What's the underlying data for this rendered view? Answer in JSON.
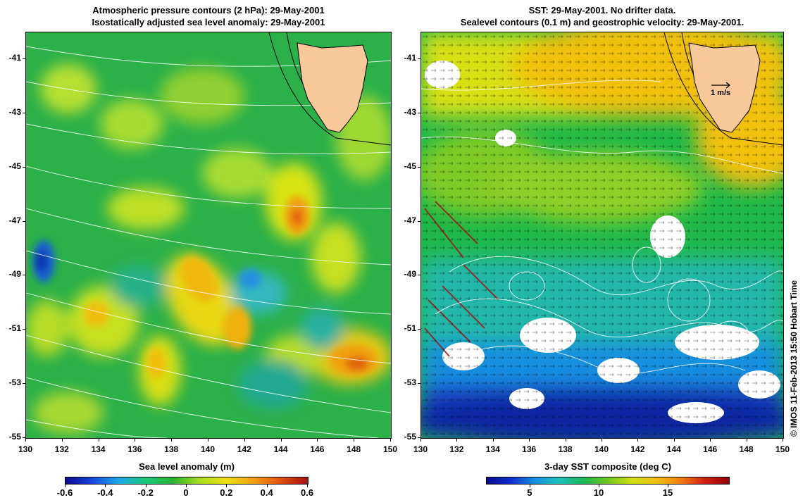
{
  "left_panel": {
    "title_line1": "Atmospheric pressure contours (2 hPa): 29-May-2001",
    "title_line2": "Isostatically adjusted sea level anomaly: 29-May-2001",
    "colorbar": {
      "title": "Sea level anomaly (m)",
      "labels": [
        "-0.6",
        "-0.4",
        "-0.2",
        "0",
        "0.2",
        "0.4",
        "0.6"
      ],
      "colors": [
        "#0a0a8c",
        "#1848d8",
        "#20a8e8",
        "#1cc878",
        "#30b030",
        "#a8e020",
        "#f0e010",
        "#f0a010",
        "#e05010",
        "#a01010"
      ]
    }
  },
  "right_panel": {
    "title_line1": "SST: 29-May-2001. No drifter data.",
    "title_line2": "Sealevel contours (0.1 m) and geostrophic velocity: 29-May-2001.",
    "velocity_scale_label": "1 m/s",
    "colorbar": {
      "title": "3-day SST composite (deg C)",
      "labels": [
        "5",
        "10",
        "15"
      ],
      "colors": [
        "#0a0a8c",
        "#1030c8",
        "#1890e0",
        "#20c0c0",
        "#20b850",
        "#70c820",
        "#d0e010",
        "#f0c010",
        "#f08010",
        "#d02010",
        "#900000"
      ]
    }
  },
  "axes": {
    "y_ticks": [
      "-41",
      "-43",
      "-45",
      "-47",
      "-49",
      "-51",
      "-53",
      "-55"
    ],
    "x_ticks": [
      "130",
      "132",
      "134",
      "136",
      "138",
      "140",
      "142",
      "144",
      "146",
      "148",
      "150"
    ]
  },
  "land_color": "#f8c898",
  "credit": "© IMOS 11-Feb-2013 15:50 Hobart Time"
}
